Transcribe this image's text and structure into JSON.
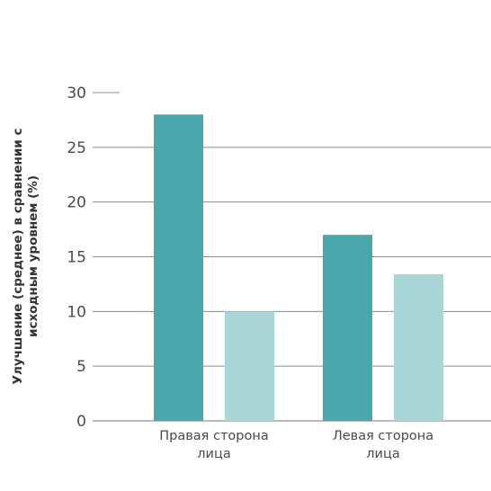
{
  "chart_data": {
    "type": "bar",
    "ylabel": [
      "Улучшение (среднее) в сравнении с",
      "исходным уровнем (%)"
    ],
    "xlabel": "",
    "ylim": [
      0,
      30
    ],
    "yticks": [
      0,
      5,
      10,
      15,
      20,
      25,
      30
    ],
    "grid": true,
    "categories": [
      [
        "Правая сторона",
        "лица"
      ],
      [
        "Левая сторона",
        "лица"
      ]
    ],
    "series": [
      {
        "values": [
          28,
          17
        ],
        "color": "#4aa8ad"
      },
      {
        "values": [
          10,
          13.4
        ],
        "color": "#a8d6d6"
      }
    ]
  }
}
